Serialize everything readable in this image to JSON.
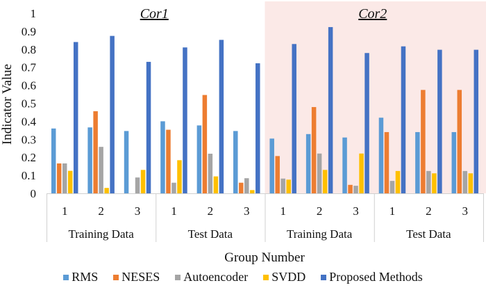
{
  "chart_data": {
    "type": "bar",
    "ylabel": "Indicator Value",
    "xlabel": "Group Number",
    "ylim": [
      0,
      1
    ],
    "yticks": [
      "0",
      "0.1",
      "0.2",
      "0.3",
      "0.4",
      "0.5",
      "0.6",
      "0.7",
      "0.8",
      "0.9",
      "1"
    ],
    "grid": false,
    "legend_position": "bottom",
    "regions": [
      {
        "title": "Cor1",
        "highlight": false,
        "highlight_color": "#ffffff",
        "datasets": [
          {
            "name": "Training Data",
            "categories": [
              "1",
              "2",
              "3"
            ]
          },
          {
            "name": "Test Data",
            "categories": [
              "1",
              "2",
              "3"
            ]
          }
        ]
      },
      {
        "title": "Cor2",
        "highlight": true,
        "highlight_color": "#fbe9e7",
        "datasets": [
          {
            "name": "Training Data",
            "categories": [
              "1",
              "2",
              "3"
            ]
          },
          {
            "name": "Test Data",
            "categories": [
              "1",
              "2",
              "3"
            ]
          }
        ]
      }
    ],
    "categories": [
      "Cor1 Training 1",
      "Cor1 Training 2",
      "Cor1 Training 3",
      "Cor1 Test 1",
      "Cor1 Test 2",
      "Cor1 Test 3",
      "Cor2 Training 1",
      "Cor2 Training 2",
      "Cor2 Training 3",
      "Cor2 Test 1",
      "Cor2 Test 2",
      "Cor2 Test 3"
    ],
    "series": [
      {
        "name": "RMS",
        "color": "#5b9bd5",
        "values": [
          0.36,
          0.366,
          0.346,
          0.4,
          0.377,
          0.346,
          0.304,
          0.329,
          0.31,
          0.42,
          0.34,
          0.34
        ]
      },
      {
        "name": "NESES",
        "color": "#ed7d31",
        "values": [
          0.166,
          0.456,
          0.0,
          0.353,
          0.546,
          0.059,
          0.207,
          0.479,
          0.047,
          0.34,
          0.574,
          0.574
        ]
      },
      {
        "name": "Autoencoder",
        "color": "#a5a5a5",
        "values": [
          0.166,
          0.258,
          0.088,
          0.059,
          0.22,
          0.084,
          0.082,
          0.221,
          0.042,
          0.069,
          0.124,
          0.124
        ]
      },
      {
        "name": "SVDD",
        "color": "#ffc000",
        "values": [
          0.125,
          0.03,
          0.13,
          0.184,
          0.094,
          0.018,
          0.076,
          0.13,
          0.221,
          0.124,
          0.111,
          0.111
        ]
      },
      {
        "name": "Proposed Methods",
        "color": "#4472c4",
        "values": [
          0.84,
          0.874,
          0.73,
          0.81,
          0.852,
          0.722,
          0.829,
          0.923,
          0.779,
          0.816,
          0.797,
          0.797
        ]
      }
    ]
  }
}
